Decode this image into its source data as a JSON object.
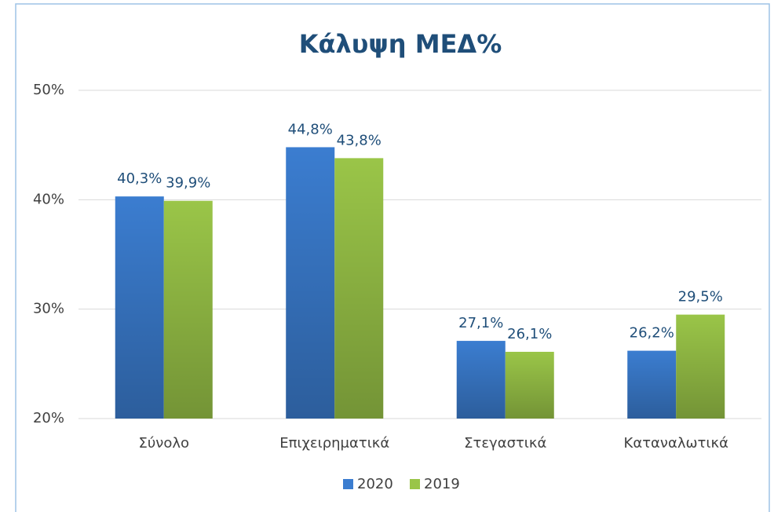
{
  "chart_data": {
    "type": "bar",
    "title": "Κάλυψη ΜΕΔ%",
    "categories": [
      "Σύνολο",
      "Επιχειρηματικά",
      "Στεγαστικά",
      "Καταναλωτικά"
    ],
    "series": [
      {
        "name": "2020",
        "color": "#3b7dd0",
        "values": [
          40.3,
          44.8,
          27.1,
          26.2
        ],
        "value_labels": [
          "40,3%",
          "44,8%",
          "27,1%",
          "26,2%"
        ]
      },
      {
        "name": "2019",
        "color": "#9ac548",
        "values": [
          39.9,
          43.8,
          26.1,
          29.5
        ],
        "value_labels": [
          "39,9%",
          "43,8%",
          "26,1%",
          "29,5%"
        ]
      }
    ],
    "ylim": [
      20,
      50
    ],
    "yticks": [
      {
        "value": 20,
        "label": "20%"
      },
      {
        "value": 30,
        "label": "30%"
      },
      {
        "value": 40,
        "label": "40%"
      },
      {
        "value": 50,
        "label": "50%"
      }
    ],
    "grid": true,
    "legend": "bottom"
  }
}
